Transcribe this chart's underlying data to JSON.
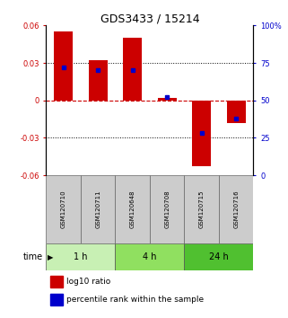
{
  "title": "GDS3433 / 15214",
  "samples": [
    "GSM120710",
    "GSM120711",
    "GSM120648",
    "GSM120708",
    "GSM120715",
    "GSM120716"
  ],
  "log10_ratio": [
    0.055,
    0.032,
    0.05,
    0.002,
    -0.053,
    -0.018
  ],
  "percentile_rank": [
    72,
    70,
    70,
    52,
    28,
    38
  ],
  "groups": [
    {
      "label": "1 h",
      "indices": [
        0,
        1
      ],
      "color": "#c8f0b4"
    },
    {
      "label": "4 h",
      "indices": [
        2,
        3
      ],
      "color": "#90e060"
    },
    {
      "label": "24 h",
      "indices": [
        4,
        5
      ],
      "color": "#50c030"
    }
  ],
  "ylim_left": [
    -0.06,
    0.06
  ],
  "ylim_right": [
    0,
    100
  ],
  "yticks_left": [
    -0.06,
    -0.03,
    0,
    0.03,
    0.06
  ],
  "yticks_right": [
    0,
    25,
    50,
    75,
    100
  ],
  "bar_color": "#cc0000",
  "dot_color": "#0000cc",
  "zero_line_color": "#cc0000",
  "grid_color": "#000000",
  "bar_width": 0.55,
  "legend_bar_label": "log10 ratio",
  "legend_dot_label": "percentile rank within the sample",
  "title_fontsize": 9,
  "tick_fontsize": 6,
  "sample_fontsize": 5,
  "label_fontsize": 7,
  "legend_fontsize": 6.5
}
